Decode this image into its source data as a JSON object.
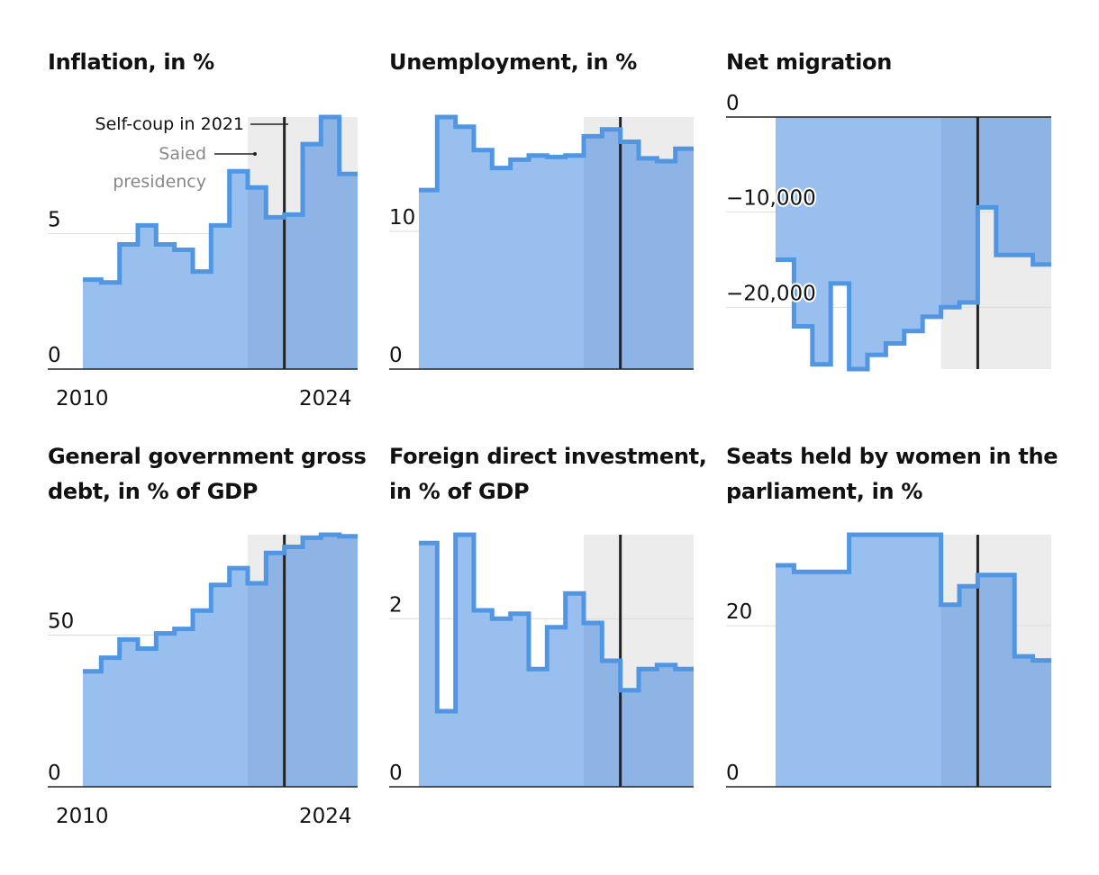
{
  "chart_data": [
    {
      "type": "area",
      "title": "Inflation, in %",
      "x": [
        2010,
        2011,
        2012,
        2013,
        2014,
        2015,
        2016,
        2017,
        2018,
        2019,
        2020,
        2021,
        2022,
        2023,
        2024
      ],
      "values": [
        3.3,
        3.2,
        4.6,
        5.3,
        4.6,
        4.4,
        3.6,
        5.3,
        7.3,
        6.7,
        5.6,
        5.7,
        8.3,
        9.3,
        7.2
      ],
      "ylim": [
        0,
        9.3
      ],
      "yticks": [
        0,
        5
      ],
      "ytick_labels": [
        "0",
        "5"
      ],
      "xtick_labels": [
        "2010",
        "2024"
      ],
      "annotations": {
        "self_coup": "Self-coup in 2021",
        "saied_line1": "Saied",
        "saied_line2": "presidency"
      }
    },
    {
      "type": "area",
      "title": "Unemployment, in %",
      "x": [
        2010,
        2011,
        2012,
        2013,
        2014,
        2015,
        2016,
        2017,
        2018,
        2019,
        2020,
        2021,
        2022,
        2023,
        2024
      ],
      "values": [
        13.0,
        18.3,
        17.6,
        15.9,
        14.6,
        15.2,
        15.5,
        15.4,
        15.5,
        16.9,
        17.4,
        16.5,
        15.3,
        15.1,
        16.0
      ],
      "ylim": [
        0,
        18.3
      ],
      "yticks": [
        0,
        10
      ],
      "ytick_labels": [
        "0",
        "10"
      ]
    },
    {
      "type": "area",
      "title": "Net migration",
      "x": [
        2010,
        2011,
        2012,
        2013,
        2014,
        2015,
        2016,
        2017,
        2018,
        2019,
        2020,
        2021,
        2022,
        2023,
        2024
      ],
      "values": [
        -15000,
        -22000,
        -26000,
        -17500,
        -26500,
        -25000,
        -23800,
        -22500,
        -21000,
        -20000,
        -19500,
        -9500,
        -14500,
        -14500,
        -15500
      ],
      "ylim": [
        -26500,
        0
      ],
      "yticks": [
        0,
        -10000,
        -20000
      ],
      "ytick_labels": [
        "0",
        "−10,000",
        "−20,000"
      ]
    },
    {
      "type": "area",
      "title": "General government gross debt, in % of GDP",
      "x": [
        2010,
        2011,
        2012,
        2013,
        2014,
        2015,
        2016,
        2017,
        2018,
        2019,
        2020,
        2021,
        2022,
        2023,
        2024
      ],
      "values": [
        38.0,
        42.5,
        48.5,
        45.5,
        50.5,
        52.0,
        58.0,
        66.5,
        72.0,
        67.0,
        77.0,
        79.0,
        82.0,
        83.0,
        82.5
      ],
      "ylim": [
        0,
        83
      ],
      "yticks": [
        0,
        50
      ],
      "ytick_labels": [
        "0",
        "50"
      ],
      "xtick_labels": [
        "2010",
        "2024"
      ]
    },
    {
      "type": "area",
      "title": "Foreign direct investment, in % of GDP",
      "x": [
        2010,
        2011,
        2012,
        2013,
        2014,
        2015,
        2016,
        2017,
        2018,
        2019,
        2020,
        2021,
        2022,
        2023,
        2024
      ],
      "values": [
        2.9,
        0.9,
        3.0,
        2.1,
        2.0,
        2.06,
        1.4,
        1.9,
        2.3,
        1.95,
        1.5,
        1.15,
        1.4,
        1.45,
        1.4
      ],
      "ylim": [
        0,
        3.0
      ],
      "yticks": [
        0,
        2
      ],
      "ytick_labels": [
        "0",
        "2"
      ]
    },
    {
      "type": "area",
      "title": "Seats held by women in the parliament, in %",
      "x": [
        2010,
        2011,
        2012,
        2013,
        2014,
        2015,
        2016,
        2017,
        2018,
        2019,
        2020,
        2021,
        2022,
        2023,
        2024
      ],
      "values": [
        27.5,
        26.7,
        26.7,
        26.7,
        31.3,
        31.3,
        31.3,
        31.3,
        31.3,
        22.6,
        24.9,
        26.3,
        26.3,
        16.2,
        15.7
      ],
      "ylim": [
        0,
        31.3
      ],
      "yticks": [
        0,
        20
      ],
      "ytick_labels": [
        "0",
        "20"
      ]
    }
  ],
  "shaded_period": {
    "label": "Saied presidency",
    "from_year": 2019
  },
  "event_marker": {
    "label": "Self-coup in 2021",
    "year": 2021
  },
  "colors": {
    "fill": "#99bfee",
    "fill_shaded": "#8eb3e5",
    "line": "#5096e3",
    "shade": "#ececec",
    "grid": "#dddddd",
    "vline": "#222222",
    "axis": "#222222",
    "muted": "#888888"
  }
}
